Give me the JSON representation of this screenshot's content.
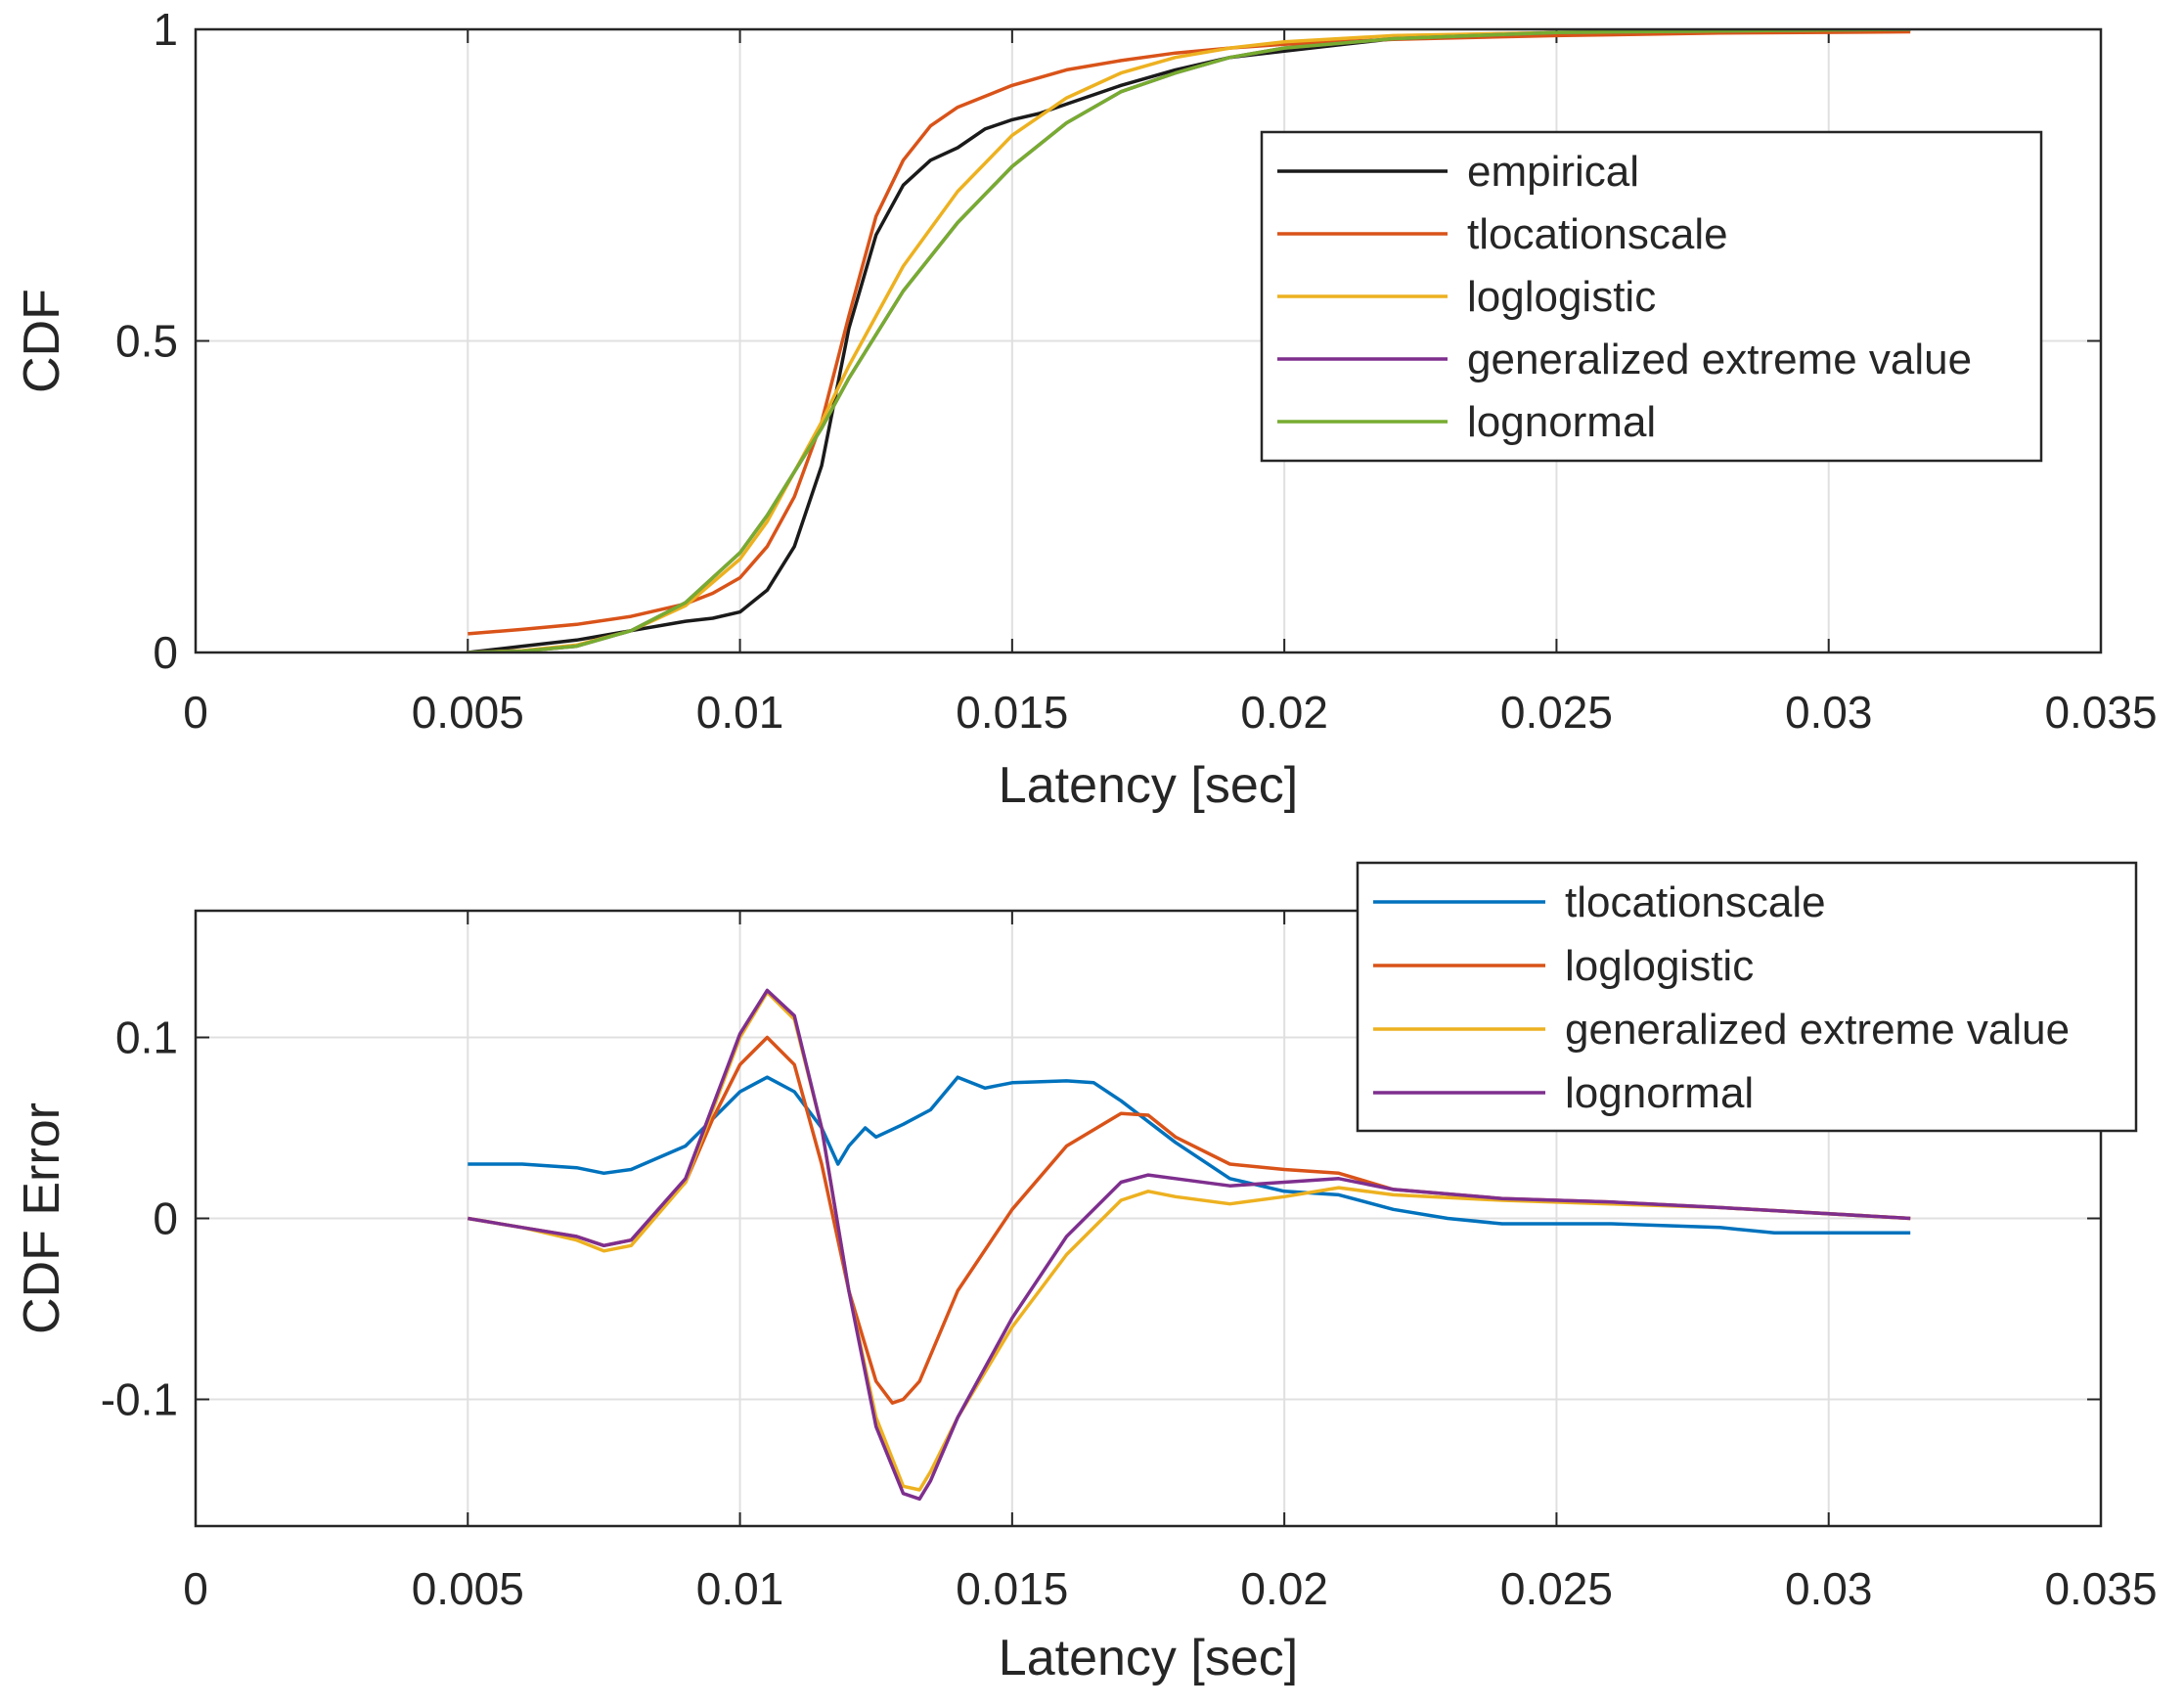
{
  "colors": {
    "black": "#1a1a1a",
    "blue": "#0072BD",
    "red": "#D95319",
    "yellow": "#EDB120",
    "purple": "#7E2F8E",
    "green": "#77AC30",
    "grid": "#e0e0e0",
    "axis": "#262626"
  },
  "chart_data": [
    {
      "type": "line",
      "title": "",
      "xlabel": "Latency [sec]",
      "ylabel": "CDF",
      "xlim": [
        0,
        0.035
      ],
      "ylim": [
        0,
        1
      ],
      "grid": true,
      "legend_position": "top-right",
      "xticks": [
        0,
        0.005,
        0.01,
        0.015,
        0.02,
        0.025,
        0.03,
        0.035
      ],
      "xtick_labels": [
        "0",
        "0.005",
        "0.01",
        "0.015",
        "0.02",
        "0.025",
        "0.03",
        "0.035"
      ],
      "yticks": [
        0,
        0.5,
        1
      ],
      "ytick_labels": [
        "0",
        "0.5",
        "1"
      ],
      "series": [
        {
          "name": "empirical",
          "color": "black",
          "points": [
            [
              0.005,
              0
            ],
            [
              0.006,
              0.01
            ],
            [
              0.007,
              0.02
            ],
            [
              0.008,
              0.035
            ],
            [
              0.009,
              0.05
            ],
            [
              0.0095,
              0.055
            ],
            [
              0.01,
              0.065
            ],
            [
              0.0105,
              0.1
            ],
            [
              0.011,
              0.17
            ],
            [
              0.0115,
              0.3
            ],
            [
              0.012,
              0.52
            ],
            [
              0.0125,
              0.67
            ],
            [
              0.013,
              0.75
            ],
            [
              0.0135,
              0.79
            ],
            [
              0.014,
              0.81
            ],
            [
              0.0145,
              0.84
            ],
            [
              0.015,
              0.855
            ],
            [
              0.0155,
              0.865
            ],
            [
              0.016,
              0.88
            ],
            [
              0.017,
              0.91
            ],
            [
              0.018,
              0.935
            ],
            [
              0.019,
              0.955
            ],
            [
              0.02,
              0.965
            ],
            [
              0.021,
              0.975
            ],
            [
              0.022,
              0.985
            ],
            [
              0.023,
              0.99
            ],
            [
              0.025,
              0.993
            ],
            [
              0.028,
              0.996
            ],
            [
              0.0315,
              1
            ]
          ]
        },
        {
          "name": "tlocationscale",
          "color": "red",
          "points": [
            [
              0.005,
              0.03
            ],
            [
              0.006,
              0.037
            ],
            [
              0.007,
              0.045
            ],
            [
              0.008,
              0.058
            ],
            [
              0.009,
              0.078
            ],
            [
              0.0095,
              0.095
            ],
            [
              0.01,
              0.12
            ],
            [
              0.0105,
              0.17
            ],
            [
              0.011,
              0.25
            ],
            [
              0.0115,
              0.37
            ],
            [
              0.012,
              0.54
            ],
            [
              0.0125,
              0.7
            ],
            [
              0.013,
              0.79
            ],
            [
              0.0135,
              0.845
            ],
            [
              0.014,
              0.875
            ],
            [
              0.015,
              0.91
            ],
            [
              0.016,
              0.935
            ],
            [
              0.017,
              0.95
            ],
            [
              0.018,
              0.962
            ],
            [
              0.019,
              0.97
            ],
            [
              0.02,
              0.976
            ],
            [
              0.022,
              0.984
            ],
            [
              0.025,
              0.99
            ],
            [
              0.028,
              0.994
            ],
            [
              0.0315,
              0.996
            ]
          ]
        },
        {
          "name": "loglogistic",
          "color": "yellow",
          "points": [
            [
              0.005,
              0
            ],
            [
              0.006,
              0.003
            ],
            [
              0.007,
              0.012
            ],
            [
              0.008,
              0.035
            ],
            [
              0.009,
              0.075
            ],
            [
              0.01,
              0.15
            ],
            [
              0.0105,
              0.21
            ],
            [
              0.011,
              0.29
            ],
            [
              0.0115,
              0.37
            ],
            [
              0.012,
              0.46
            ],
            [
              0.0125,
              0.54
            ],
            [
              0.013,
              0.62
            ],
            [
              0.014,
              0.74
            ],
            [
              0.015,
              0.83
            ],
            [
              0.016,
              0.89
            ],
            [
              0.017,
              0.93
            ],
            [
              0.018,
              0.955
            ],
            [
              0.019,
              0.97
            ],
            [
              0.02,
              0.98
            ],
            [
              0.022,
              0.99
            ],
            [
              0.025,
              0.995
            ],
            [
              0.0315,
              1
            ]
          ]
        },
        {
          "name": "generalized extreme value",
          "color": "purple",
          "points": [
            [
              0.005,
              0
            ],
            [
              0.006,
              0.002
            ],
            [
              0.007,
              0.01
            ],
            [
              0.008,
              0.035
            ],
            [
              0.009,
              0.08
            ],
            [
              0.01,
              0.16
            ],
            [
              0.0105,
              0.22
            ],
            [
              0.011,
              0.29
            ],
            [
              0.0115,
              0.36
            ],
            [
              0.012,
              0.44
            ],
            [
              0.0125,
              0.51
            ],
            [
              0.013,
              0.58
            ],
            [
              0.014,
              0.69
            ],
            [
              0.015,
              0.78
            ],
            [
              0.016,
              0.85
            ],
            [
              0.017,
              0.9
            ],
            [
              0.018,
              0.93
            ],
            [
              0.019,
              0.955
            ],
            [
              0.02,
              0.97
            ],
            [
              0.022,
              0.985
            ],
            [
              0.025,
              0.995
            ],
            [
              0.0315,
              1
            ]
          ]
        },
        {
          "name": "lognormal",
          "color": "green",
          "points": [
            [
              0.005,
              0
            ],
            [
              0.006,
              0.002
            ],
            [
              0.007,
              0.01
            ],
            [
              0.008,
              0.035
            ],
            [
              0.009,
              0.08
            ],
            [
              0.01,
              0.16
            ],
            [
              0.0105,
              0.22
            ],
            [
              0.011,
              0.29
            ],
            [
              0.0115,
              0.36
            ],
            [
              0.012,
              0.44
            ],
            [
              0.0125,
              0.51
            ],
            [
              0.013,
              0.58
            ],
            [
              0.014,
              0.69
            ],
            [
              0.015,
              0.78
            ],
            [
              0.016,
              0.85
            ],
            [
              0.017,
              0.9
            ],
            [
              0.018,
              0.93
            ],
            [
              0.019,
              0.955
            ],
            [
              0.02,
              0.97
            ],
            [
              0.022,
              0.985
            ],
            [
              0.025,
              0.995
            ],
            [
              0.0315,
              1
            ]
          ]
        }
      ]
    },
    {
      "type": "line",
      "title": "",
      "xlabel": "Latency [sec]",
      "ylabel": "CDF Error",
      "xlim": [
        0,
        0.035
      ],
      "ylim": [
        -0.17,
        0.17
      ],
      "grid": true,
      "legend_position": "top-right",
      "xticks": [
        0,
        0.005,
        0.01,
        0.015,
        0.02,
        0.025,
        0.03,
        0.035
      ],
      "xtick_labels": [
        "0",
        "0.005",
        "0.01",
        "0.015",
        "0.02",
        "0.025",
        "0.03",
        "0.035"
      ],
      "yticks": [
        -0.1,
        0,
        0.1
      ],
      "ytick_labels": [
        "-0.1",
        "0",
        "0.1"
      ],
      "series": [
        {
          "name": "tlocationscale",
          "color": "blue",
          "points": [
            [
              0.005,
              0.03
            ],
            [
              0.006,
              0.03
            ],
            [
              0.007,
              0.028
            ],
            [
              0.0075,
              0.025
            ],
            [
              0.008,
              0.027
            ],
            [
              0.009,
              0.04
            ],
            [
              0.0095,
              0.055
            ],
            [
              0.01,
              0.07
            ],
            [
              0.0105,
              0.078
            ],
            [
              0.011,
              0.07
            ],
            [
              0.0115,
              0.05
            ],
            [
              0.0118,
              0.03
            ],
            [
              0.012,
              0.04
            ],
            [
              0.0123,
              0.05
            ],
            [
              0.0125,
              0.045
            ],
            [
              0.013,
              0.052
            ],
            [
              0.0135,
              0.06
            ],
            [
              0.014,
              0.078
            ],
            [
              0.0145,
              0.072
            ],
            [
              0.015,
              0.075
            ],
            [
              0.016,
              0.076
            ],
            [
              0.0165,
              0.075
            ],
            [
              0.017,
              0.065
            ],
            [
              0.018,
              0.042
            ],
            [
              0.019,
              0.022
            ],
            [
              0.02,
              0.015
            ],
            [
              0.021,
              0.013
            ],
            [
              0.022,
              0.005
            ],
            [
              0.023,
              0
            ],
            [
              0.024,
              -0.003
            ],
            [
              0.026,
              -0.003
            ],
            [
              0.028,
              -0.005
            ],
            [
              0.029,
              -0.008
            ],
            [
              0.0315,
              -0.008
            ]
          ]
        },
        {
          "name": "loglogistic",
          "color": "red",
          "points": [
            [
              0.005,
              0
            ],
            [
              0.006,
              -0.005
            ],
            [
              0.007,
              -0.01
            ],
            [
              0.0075,
              -0.015
            ],
            [
              0.008,
              -0.012
            ],
            [
              0.009,
              0.02
            ],
            [
              0.0095,
              0.055
            ],
            [
              0.01,
              0.085
            ],
            [
              0.0105,
              0.1
            ],
            [
              0.011,
              0.085
            ],
            [
              0.0115,
              0.03
            ],
            [
              0.012,
              -0.04
            ],
            [
              0.0125,
              -0.09
            ],
            [
              0.0128,
              -0.102
            ],
            [
              0.013,
              -0.1
            ],
            [
              0.0133,
              -0.09
            ],
            [
              0.014,
              -0.04
            ],
            [
              0.015,
              0.005
            ],
            [
              0.016,
              0.04
            ],
            [
              0.017,
              0.058
            ],
            [
              0.0175,
              0.057
            ],
            [
              0.018,
              0.045
            ],
            [
              0.019,
              0.03
            ],
            [
              0.02,
              0.027
            ],
            [
              0.021,
              0.025
            ],
            [
              0.022,
              0.016
            ],
            [
              0.024,
              0.011
            ],
            [
              0.026,
              0.009
            ],
            [
              0.028,
              0.006
            ],
            [
              0.0315,
              0
            ]
          ]
        },
        {
          "name": "generalized extreme value",
          "color": "yellow",
          "points": [
            [
              0.005,
              0
            ],
            [
              0.006,
              -0.005
            ],
            [
              0.007,
              -0.012
            ],
            [
              0.0075,
              -0.018
            ],
            [
              0.008,
              -0.015
            ],
            [
              0.009,
              0.02
            ],
            [
              0.0095,
              0.06
            ],
            [
              0.01,
              0.1
            ],
            [
              0.0105,
              0.125
            ],
            [
              0.011,
              0.11
            ],
            [
              0.0115,
              0.05
            ],
            [
              0.012,
              -0.04
            ],
            [
              0.0125,
              -0.11
            ],
            [
              0.013,
              -0.148
            ],
            [
              0.0133,
              -0.15
            ],
            [
              0.0135,
              -0.14
            ],
            [
              0.014,
              -0.11
            ],
            [
              0.015,
              -0.06
            ],
            [
              0.016,
              -0.02
            ],
            [
              0.017,
              0.01
            ],
            [
              0.0175,
              0.015
            ],
            [
              0.018,
              0.012
            ],
            [
              0.019,
              0.008
            ],
            [
              0.02,
              0.012
            ],
            [
              0.021,
              0.017
            ],
            [
              0.022,
              0.013
            ],
            [
              0.024,
              0.01
            ],
            [
              0.026,
              0.008
            ],
            [
              0.028,
              0.006
            ],
            [
              0.0315,
              0
            ]
          ]
        },
        {
          "name": "lognormal",
          "color": "purple",
          "points": [
            [
              0.005,
              0
            ],
            [
              0.006,
              -0.005
            ],
            [
              0.007,
              -0.01
            ],
            [
              0.0075,
              -0.015
            ],
            [
              0.008,
              -0.012
            ],
            [
              0.009,
              0.022
            ],
            [
              0.0095,
              0.062
            ],
            [
              0.01,
              0.102
            ],
            [
              0.0105,
              0.126
            ],
            [
              0.011,
              0.112
            ],
            [
              0.0115,
              0.05
            ],
            [
              0.012,
              -0.04
            ],
            [
              0.0125,
              -0.115
            ],
            [
              0.013,
              -0.152
            ],
            [
              0.0133,
              -0.155
            ],
            [
              0.0135,
              -0.145
            ],
            [
              0.014,
              -0.11
            ],
            [
              0.015,
              -0.055
            ],
            [
              0.016,
              -0.01
            ],
            [
              0.017,
              0.02
            ],
            [
              0.0175,
              0.024
            ],
            [
              0.018,
              0.022
            ],
            [
              0.019,
              0.018
            ],
            [
              0.02,
              0.02
            ],
            [
              0.021,
              0.022
            ],
            [
              0.022,
              0.016
            ],
            [
              0.024,
              0.011
            ],
            [
              0.026,
              0.009
            ],
            [
              0.028,
              0.006
            ],
            [
              0.0315,
              0
            ]
          ]
        }
      ]
    }
  ]
}
